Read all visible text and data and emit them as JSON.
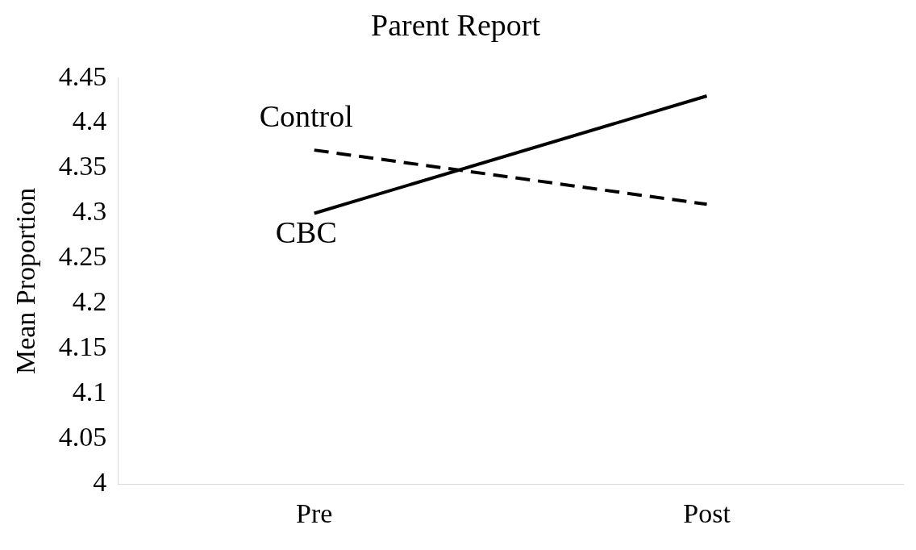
{
  "chart_data": {
    "type": "line",
    "title": "Parent Report",
    "ylabel": "Mean Proportion",
    "categories": [
      "Pre",
      "Post"
    ],
    "series": [
      {
        "name": "Control",
        "color": "#000000",
        "line_style": "dashed",
        "values": [
          4.37,
          4.31
        ]
      },
      {
        "name": "CBC",
        "color": "#000000",
        "line_style": "solid",
        "values": [
          4.3,
          4.43
        ]
      }
    ],
    "ylim": [
      4,
      4.45
    ],
    "yticks": [
      4,
      4.05,
      4.1,
      4.15,
      4.2,
      4.25,
      4.3,
      4.35,
      4.4,
      4.45
    ],
    "grid": false,
    "legend": false,
    "marker": "none"
  }
}
